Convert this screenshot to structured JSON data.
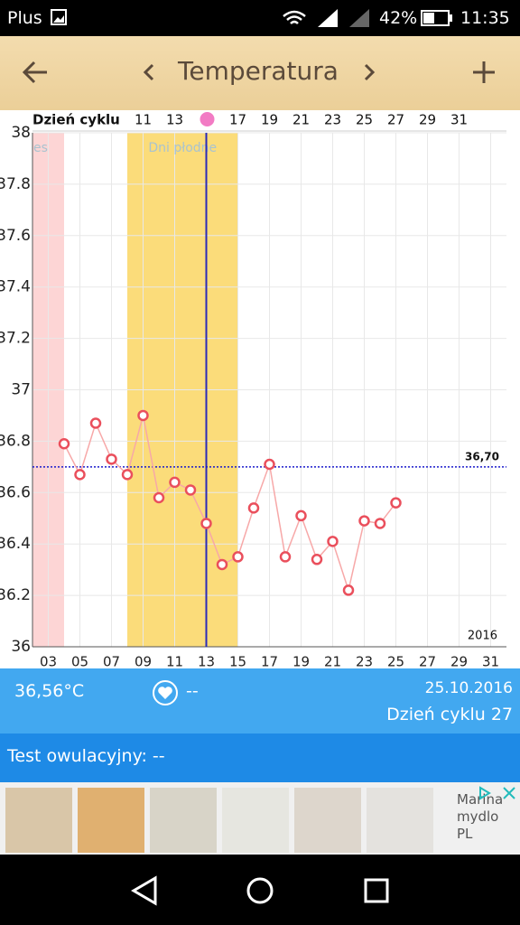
{
  "status_bar": {
    "carrier": "Plus",
    "battery": "42%",
    "time": "11:35"
  },
  "header": {
    "title": "Temperatura"
  },
  "chart_data": {
    "type": "line",
    "x2_label": "Dzień cyklu",
    "x": [
      4,
      5,
      6,
      7,
      8,
      9,
      10,
      11,
      12,
      13,
      14,
      15,
      16,
      17,
      18,
      19,
      20,
      21,
      22,
      23,
      24,
      25
    ],
    "values": [
      36.79,
      36.67,
      36.87,
      36.73,
      36.67,
      36.9,
      36.58,
      36.64,
      36.61,
      36.48,
      36.32,
      36.35,
      36.54,
      36.71,
      36.35,
      36.51,
      36.34,
      36.41,
      36.22,
      36.49,
      36.48,
      36.56
    ],
    "color": "#f7a8a8",
    "marker_color": "#ea4f5c",
    "xlim": [
      2,
      32
    ],
    "xticks": [
      {
        "value": 3,
        "label": "03"
      },
      {
        "value": 5,
        "label": "05"
      },
      {
        "value": 7,
        "label": "07"
      },
      {
        "value": 9,
        "label": "09"
      },
      11,
      13,
      15,
      17,
      19,
      21,
      23,
      25,
      27,
      29,
      31
    ],
    "x2lim": [
      4,
      34
    ],
    "x2ticks": [
      11,
      13,
      17,
      19,
      21,
      23,
      25,
      27,
      29,
      31
    ],
    "ylim": [
      36,
      38
    ],
    "yticks": [
      36,
      36.2,
      36.4,
      36.6,
      36.8,
      37,
      37.2,
      37.4,
      37.6,
      37.8,
      38
    ],
    "grid": true,
    "reference_line": {
      "value": 36.7,
      "label": "36,70",
      "color": "#1a1acc"
    },
    "bands": [
      {
        "from": 2,
        "to": 4,
        "label": "es",
        "color": "#fdd5d5"
      },
      {
        "from": 8,
        "to": 15,
        "label": "Dni płodne",
        "color": "#fbdc7a"
      }
    ],
    "ovulation_x": 13,
    "ovulation_color": "#2a2ab8",
    "year_label": "2016"
  },
  "info": {
    "temperature": "36,56°C",
    "heart_value": "--",
    "date": "25.10.2016",
    "cycle_day": "Dzień cyklu 27",
    "ovulation_test": "Test owulacyjny: --"
  },
  "ad": {
    "text": "Marina mydlo PL"
  }
}
